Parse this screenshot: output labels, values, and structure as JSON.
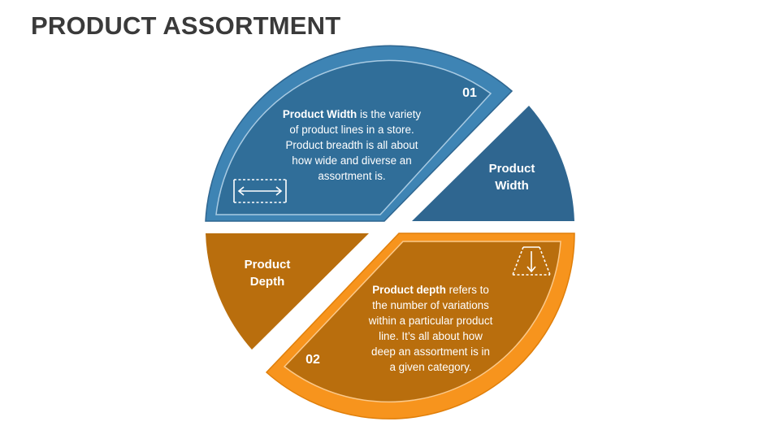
{
  "title": "PRODUCT ASSORTMENT",
  "colors": {
    "blue_light": "#3E84B4",
    "blue_dark": "#2F6690",
    "orange_light": "#F7941D",
    "orange_dark": "#B96E0D"
  },
  "segments": {
    "width": {
      "number": "01",
      "label_line1": "Product",
      "label_line2": "Width",
      "desc_bold": "Product Width",
      "desc_line1_rest": " is the variety",
      "desc_line2": "of product lines in a store.",
      "desc_line3": "Product breadth is all about",
      "desc_line4": "how wide and diverse an",
      "desc_line5": "assortment is.",
      "icon": "width-arrow-icon"
    },
    "depth": {
      "number": "02",
      "label_line1": "Product",
      "label_line2": "Depth",
      "desc_bold": "Product depth",
      "desc_line1_rest": " refers to",
      "desc_line2": "the number of variations",
      "desc_line3": "within a particular product",
      "desc_line4": "line. It’s all about how",
      "desc_line5": "deep an assortment is in",
      "desc_line6": "a given category.",
      "icon": "depth-arrow-icon"
    }
  }
}
